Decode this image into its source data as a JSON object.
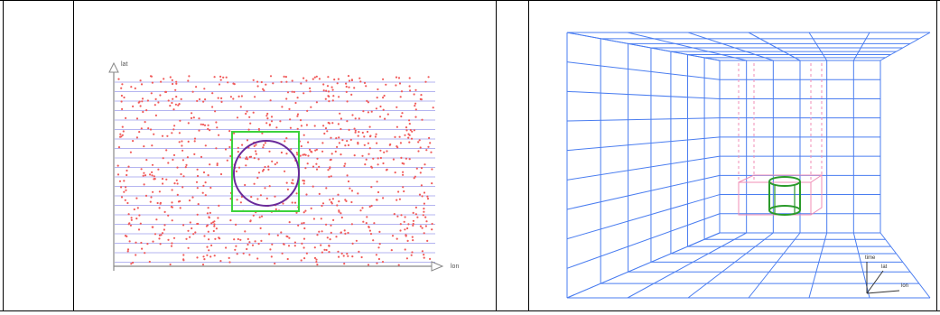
{
  "figures": {
    "scatter": {
      "y_axis_label": "lat",
      "x_axis_label": "lon"
    },
    "grid3d": {
      "axis_up_label": "time",
      "axis_depth_label": "lat",
      "axis_right_label": "lon"
    }
  },
  "colors": {
    "points": "#f05a5a",
    "grid_lines": "#b4b4f0",
    "axes": "#888888",
    "box": "#3cd23c",
    "circle": "#6a2a9a",
    "grid3d": "#4a7df0",
    "pink": "#f08cb4",
    "cylinder": "#2a9a2a"
  }
}
